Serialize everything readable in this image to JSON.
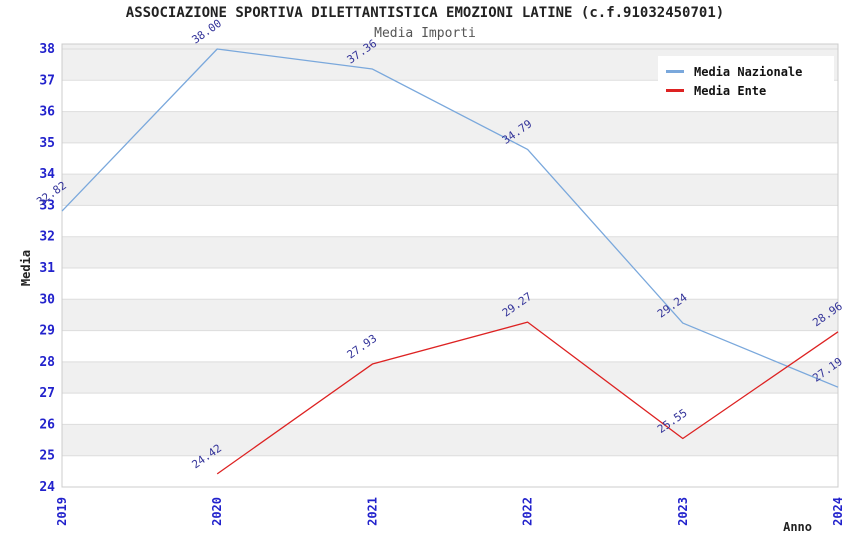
{
  "chart_data": {
    "type": "line",
    "title": "ASSOCIAZIONE SPORTIVA DILETTANTISTICA EMOZIONI LATINE (c.f.91032450701)",
    "subtitle": "Media Importi",
    "xlabel": "Anno",
    "ylabel": "Media",
    "categories": [
      "2019",
      "2020",
      "2021",
      "2022",
      "2023",
      "2024"
    ],
    "series": [
      {
        "name": "Media Nazionale",
        "color": "#7aa8dc",
        "start_index": 0,
        "values": [
          32.82,
          38.0,
          37.36,
          34.79,
          29.24,
          27.19
        ],
        "labels": [
          "32.82",
          "38.00",
          "37.36",
          "34.79",
          "29.24",
          "27.19"
        ]
      },
      {
        "name": "Media Ente",
        "color": "#dd2222",
        "start_index": 1,
        "values": [
          24.42,
          27.93,
          29.27,
          25.55,
          28.96
        ],
        "labels": [
          "24.42",
          "27.93",
          "29.27",
          "25.55",
          "28.96"
        ]
      }
    ],
    "ylim": [
      24,
      38
    ],
    "ytick_step": 1,
    "grid": true,
    "legend_position": "top-right",
    "styles": {
      "tick_label_color": "#2222cc",
      "point_label_color": "#333399",
      "band_color": "#f0f0f0",
      "grid_color": "#dddddd",
      "border_color": "#cccccc",
      "axis_title_color": "#222222"
    }
  }
}
